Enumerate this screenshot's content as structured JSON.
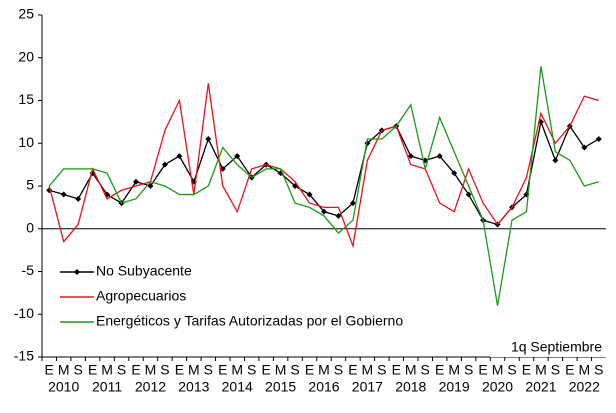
{
  "chart_data": {
    "type": "line",
    "categories": [
      "E",
      "M",
      "S",
      "E",
      "M",
      "S",
      "E",
      "M",
      "S",
      "E",
      "M",
      "S",
      "E",
      "M",
      "S",
      "E",
      "M",
      "S",
      "E",
      "M",
      "S",
      "E",
      "M",
      "S",
      "E",
      "M",
      "S",
      "E",
      "M",
      "S",
      "E",
      "M",
      "S",
      "E",
      "M",
      "S",
      "E",
      "M",
      "S"
    ],
    "years": [
      "2010",
      "2011",
      "2012",
      "2013",
      "2014",
      "2015",
      "2016",
      "2017",
      "2018",
      "2019",
      "2020",
      "2021",
      "2022"
    ],
    "series": [
      {
        "name": "No Subyacente",
        "color": "#000000",
        "marker": true,
        "values": [
          4.5,
          4,
          3.5,
          6.5,
          4,
          3,
          5.5,
          5,
          7.5,
          8.5,
          5.5,
          10.5,
          7,
          8.5,
          6,
          7.5,
          6.5,
          5,
          4,
          2,
          1.5,
          3,
          10,
          11.5,
          12,
          8.5,
          8,
          8.5,
          6.5,
          4,
          1,
          0.5,
          2.5,
          4,
          12.5,
          8,
          12,
          9.5,
          10.5
        ]
      },
      {
        "name": "Agropecuarios",
        "color": "#e8141b",
        "marker": false,
        "values": [
          5,
          -1.5,
          0.5,
          7,
          3.5,
          4.5,
          5,
          5.5,
          11.5,
          15,
          4,
          17,
          5,
          2,
          7,
          7.5,
          7,
          5.5,
          3,
          2.5,
          2.5,
          -2,
          8,
          11.5,
          12,
          7.5,
          7,
          3,
          2,
          7,
          3,
          0.5,
          2.5,
          6,
          13.5,
          10,
          12,
          15.5,
          15
        ]
      },
      {
        "name": "Energéticos y Tarifas Autorizadas por el Gobierno",
        "color": "#1a9a1a",
        "marker": false,
        "values": [
          5,
          7,
          7,
          7,
          6.5,
          3,
          3.5,
          5.5,
          5,
          4,
          4,
          5,
          9.5,
          7.5,
          6,
          7,
          7,
          3,
          2.5,
          1.5,
          -0.5,
          1,
          10.5,
          10.5,
          12,
          14.5,
          7,
          13,
          9,
          5,
          1,
          -9,
          1,
          2,
          19,
          9,
          8,
          5,
          5.5
        ]
      }
    ],
    "ylim": [
      -15,
      25
    ],
    "yticks": [
      -15,
      -10,
      -5,
      0,
      5,
      10,
      15,
      20,
      25
    ],
    "annotation": "1q Septiembre",
    "legend": "bottom-left",
    "grid": false
  }
}
